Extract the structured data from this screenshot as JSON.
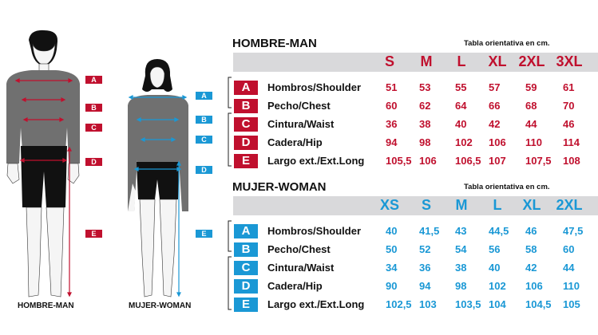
{
  "colors": {
    "man": "#c0102e",
    "woman": "#1a98d5",
    "header_bar": "#d9d9db"
  },
  "figures": {
    "man": {
      "caption": "HOMBRE-MAN",
      "labels": [
        "A",
        "B",
        "C",
        "D",
        "E"
      ]
    },
    "woman": {
      "caption": "MUJER-WOMAN",
      "labels": [
        "A",
        "B",
        "C",
        "D",
        "E"
      ]
    }
  },
  "tables": {
    "man": {
      "title": "HOMBRE-MAN",
      "note": "Tabla orientativa en cm.",
      "sizes": [
        "S",
        "M",
        "L",
        "XL",
        "2XL",
        "3XL"
      ],
      "rows": [
        {
          "key": "A",
          "label": "Hombros/Shoulder",
          "values": [
            "51",
            "53",
            "55",
            "57",
            "59",
            "61"
          ]
        },
        {
          "key": "B",
          "label": "Pecho/Chest",
          "values": [
            "60",
            "62",
            "64",
            "66",
            "68",
            "70"
          ]
        },
        {
          "key": "C",
          "label": "Cintura/Waist",
          "values": [
            "36",
            "38",
            "40",
            "42",
            "44",
            "46"
          ]
        },
        {
          "key": "D",
          "label": "Cadera/Hip",
          "values": [
            "94",
            "98",
            "102",
            "106",
            "110",
            "114"
          ]
        },
        {
          "key": "E",
          "label": "Largo ext./Ext.Long",
          "values": [
            "105,5",
            "106",
            "106,5",
            "107",
            "107,5",
            "108"
          ]
        }
      ]
    },
    "woman": {
      "title": "MUJER-WOMAN",
      "note": "Tabla orientativa en cm.",
      "sizes": [
        "XS",
        "S",
        "M",
        "L",
        "XL",
        "2XL"
      ],
      "rows": [
        {
          "key": "A",
          "label": "Hombros/Shoulder",
          "values": [
            "40",
            "41,5",
            "43",
            "44,5",
            "46",
            "47,5"
          ]
        },
        {
          "key": "B",
          "label": "Pecho/Chest",
          "values": [
            "50",
            "52",
            "54",
            "56",
            "58",
            "60"
          ]
        },
        {
          "key": "C",
          "label": "Cintura/Waist",
          "values": [
            "34",
            "36",
            "38",
            "40",
            "42",
            "44"
          ]
        },
        {
          "key": "D",
          "label": "Cadera/Hip",
          "values": [
            "90",
            "94",
            "98",
            "102",
            "106",
            "110"
          ]
        },
        {
          "key": "E",
          "label": "Largo ext./Ext.Long",
          "values": [
            "102,5",
            "103",
            "103,5",
            "104",
            "104,5",
            "105"
          ]
        }
      ]
    }
  }
}
